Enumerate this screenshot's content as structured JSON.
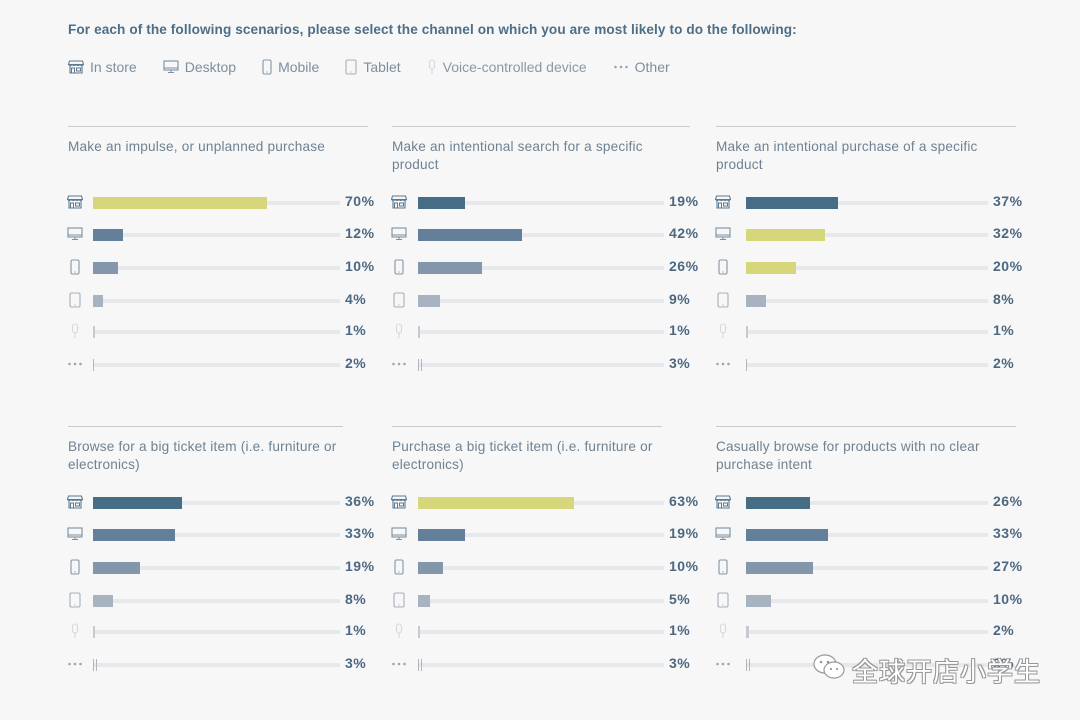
{
  "heading": "For each of the following scenarios, please select the channel on which you are most likely to do the following:",
  "legend": [
    {
      "key": "store",
      "label": "In store",
      "icon": "store-icon"
    },
    {
      "key": "desktop",
      "label": "Desktop",
      "icon": "desktop-icon"
    },
    {
      "key": "mobile",
      "label": "Mobile",
      "icon": "mobile-icon"
    },
    {
      "key": "tablet",
      "label": "Tablet",
      "icon": "tablet-icon"
    },
    {
      "key": "voice",
      "label": "Voice-controlled device",
      "icon": "microphone-icon"
    },
    {
      "key": "other",
      "label": "Other",
      "icon": "more-dots-icon"
    }
  ],
  "colors": {
    "highlight": "#d6d67a",
    "store": "#466c86",
    "desktop": "#637f9a",
    "mobile": "#8496ab",
    "tablet": "#a8b3c2",
    "voice": "#c5cad2",
    "other": "#b0b6be",
    "track": "#e6e8ec",
    "label": "#4c6880"
  },
  "watermark": "全球开店小学生",
  "chart_data": {
    "type": "bar",
    "orientation": "horizontal",
    "title": "For each of the following scenarios, please select the channel on which you are most likely to do the following:",
    "categories": [
      "In store",
      "Desktop",
      "Mobile",
      "Tablet",
      "Voice-controlled device",
      "Other"
    ],
    "xlim": [
      0,
      100
    ],
    "unit": "%",
    "panels": [
      {
        "title": "Make an impulse, or unplanned purchase",
        "values": [
          70,
          12,
          10,
          4,
          1,
          2
        ],
        "labels": [
          "70%",
          "12%",
          "10%",
          "4%",
          "1%",
          "2%"
        ],
        "highlight": [
          true,
          false,
          false,
          false,
          false,
          false
        ]
      },
      {
        "title": "Make an intentional search for a specific product",
        "values": [
          19,
          42,
          26,
          9,
          1,
          3
        ],
        "labels": [
          "19%",
          "42%",
          "26%",
          "9%",
          "1%",
          "3%"
        ],
        "highlight": [
          false,
          false,
          false,
          false,
          false,
          false
        ]
      },
      {
        "title": "Make an intentional purchase of a specific product",
        "values": [
          37,
          32,
          20,
          8,
          1,
          2
        ],
        "labels": [
          "37%",
          "32%",
          "20%",
          "8%",
          "1%",
          "2%"
        ],
        "highlight": [
          false,
          true,
          true,
          false,
          false,
          false
        ]
      },
      {
        "title": "Browse for a big ticket item (i.e. furniture or electronics)",
        "values": [
          36,
          33,
          19,
          8,
          1,
          3
        ],
        "labels": [
          "36%",
          "33%",
          "19%",
          "8%",
          "1%",
          "3%"
        ],
        "highlight": [
          false,
          false,
          false,
          false,
          false,
          false
        ]
      },
      {
        "title": "Purchase a big ticket item (i.e. furniture or electronics)",
        "values": [
          63,
          19,
          10,
          5,
          1,
          3
        ],
        "labels": [
          "63%",
          "19%",
          "10%",
          "5%",
          "1%",
          "3%"
        ],
        "highlight": [
          true,
          false,
          false,
          false,
          false,
          false
        ]
      },
      {
        "title": "Casually browse for products with no clear purchase intent",
        "values": [
          26,
          33,
          27,
          10,
          2,
          3
        ],
        "labels": [
          "26%",
          "33%",
          "27%",
          "10%",
          "2%",
          "3%"
        ],
        "highlight": [
          false,
          false,
          false,
          false,
          false,
          false
        ]
      }
    ]
  }
}
